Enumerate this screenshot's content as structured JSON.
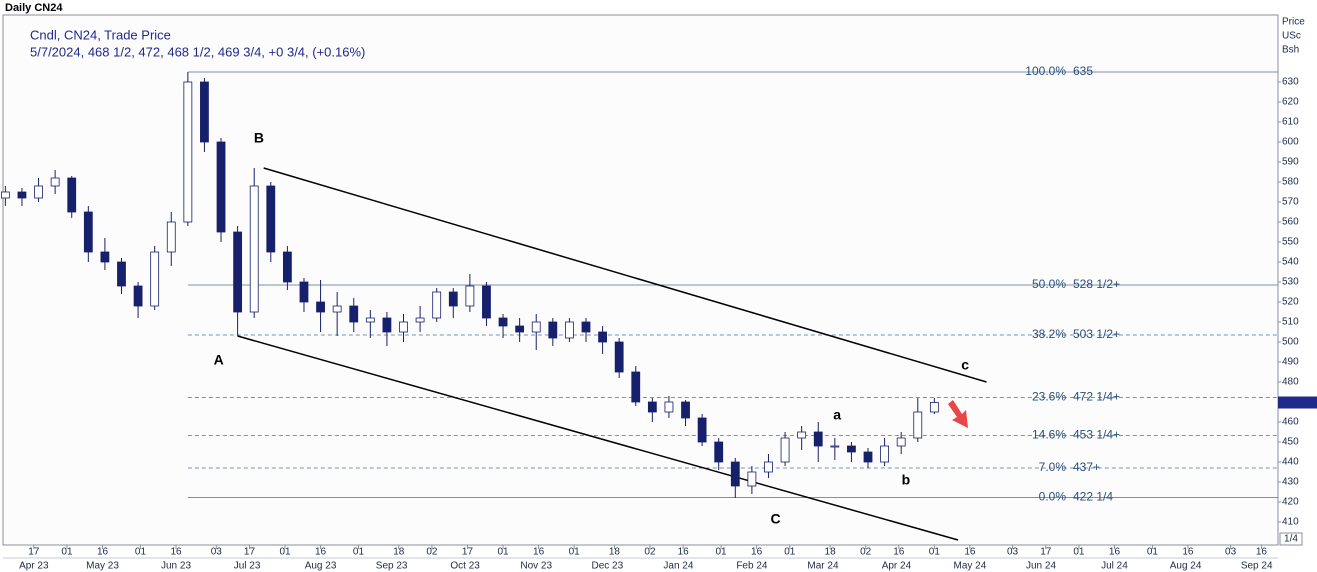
{
  "chart_data": {
    "type": "candlestick",
    "title": "Daily CN24",
    "legend_lines": [
      "Cndl, CN24, Trade Price",
      "5/7/2024, 468 1/2, 472, 468 1/2, 469 3/4, +0 3/4, (+0.16%)"
    ],
    "axis_units": [
      "Price",
      "USc",
      "Bsh"
    ],
    "corner_label": "1/4",
    "color": "#16206b",
    "x": [
      "2023-04-05",
      "2023-04-12",
      "2023-04-19",
      "2023-04-26",
      "2023-05-03",
      "2023-05-10",
      "2023-05-17",
      "2023-05-24",
      "2023-05-31",
      "2023-06-07",
      "2023-06-14",
      "2023-06-21",
      "2023-06-28",
      "2023-07-05",
      "2023-07-12",
      "2023-07-19",
      "2023-07-26",
      "2023-08-02",
      "2023-08-09",
      "2023-08-16",
      "2023-08-23",
      "2023-08-30",
      "2023-09-06",
      "2023-09-13",
      "2023-09-20",
      "2023-09-27",
      "2023-10-04",
      "2023-10-11",
      "2023-10-18",
      "2023-10-25",
      "2023-11-01",
      "2023-11-08",
      "2023-11-15",
      "2023-11-22",
      "2023-11-29",
      "2023-12-06",
      "2023-12-13",
      "2023-12-20",
      "2023-12-27",
      "2024-01-03",
      "2024-01-10",
      "2024-01-17",
      "2024-01-24",
      "2024-01-31",
      "2024-02-07",
      "2024-02-14",
      "2024-02-21",
      "2024-02-28",
      "2024-03-06",
      "2024-03-13",
      "2024-03-20",
      "2024-03-27",
      "2024-04-03",
      "2024-04-10",
      "2024-04-17",
      "2024-04-24",
      "2024-05-01"
    ],
    "open": [
      572,
      575,
      572,
      578,
      582,
      565,
      545,
      540,
      528,
      518,
      545,
      560,
      630,
      600,
      555,
      515,
      578,
      545,
      530,
      520,
      515,
      518,
      510,
      512,
      505,
      510,
      512,
      525,
      518,
      528,
      512,
      508,
      505,
      510,
      502,
      510,
      505,
      500,
      485,
      470,
      465,
      470,
      462,
      450,
      440,
      428,
      435,
      440,
      452,
      455,
      448,
      448,
      445,
      440,
      448,
      452,
      465
    ],
    "high": [
      578,
      577,
      582,
      586,
      583,
      568,
      552,
      542,
      530,
      548,
      565,
      635,
      632,
      602,
      558,
      587,
      580,
      548,
      532,
      531,
      525,
      522,
      516,
      515,
      514,
      518,
      527,
      527,
      534,
      530,
      514,
      512,
      514,
      512,
      512,
      512,
      508,
      502,
      488,
      472,
      473,
      471,
      464,
      452,
      442,
      438,
      444,
      455,
      458,
      460,
      452,
      450,
      447,
      452,
      455,
      472,
      472
    ],
    "low": [
      568,
      568,
      570,
      574,
      562,
      540,
      536,
      524,
      512,
      516,
      538,
      558,
      595,
      550,
      503,
      512,
      540,
      526,
      515,
      505,
      503,
      505,
      502,
      498,
      500,
      505,
      510,
      512,
      515,
      508,
      502,
      500,
      496,
      498,
      500,
      500,
      494,
      482,
      468,
      460,
      462,
      458,
      448,
      436,
      422,
      424,
      432,
      438,
      446,
      440,
      441,
      440,
      437,
      438,
      444,
      450,
      464
    ],
    "close": [
      575,
      572,
      578,
      582,
      565,
      545,
      540,
      528,
      518,
      545,
      560,
      630,
      600,
      555,
      515,
      578,
      545,
      530,
      520,
      515,
      518,
      510,
      512,
      505,
      510,
      512,
      525,
      518,
      528,
      512,
      508,
      505,
      510,
      502,
      510,
      505,
      500,
      485,
      470,
      465,
      470,
      462,
      450,
      440,
      428,
      435,
      440,
      452,
      455,
      448,
      448,
      445,
      440,
      448,
      452,
      465,
      469.75
    ],
    "xlim": [
      "2023-04-04",
      "2024-09-23"
    ],
    "xticks": [
      {
        "value": "2023-04-17",
        "label": "17"
      },
      {
        "value": "2023-05-01",
        "label": "01"
      },
      {
        "value": "2023-05-16",
        "label": "16"
      },
      {
        "value": "2023-06-01",
        "label": "01"
      },
      {
        "value": "2023-06-16",
        "label": "16"
      },
      {
        "value": "2023-07-03",
        "label": "03"
      },
      {
        "value": "2023-07-17",
        "label": "17"
      },
      {
        "value": "2023-08-01",
        "label": "01"
      },
      {
        "value": "2023-08-16",
        "label": "16"
      },
      {
        "value": "2023-09-01",
        "label": "01"
      },
      {
        "value": "2023-09-18",
        "label": "18"
      },
      {
        "value": "2023-10-02",
        "label": "02"
      },
      {
        "value": "2023-10-17",
        "label": "17"
      },
      {
        "value": "2023-11-01",
        "label": "01"
      },
      {
        "value": "2023-11-16",
        "label": "16"
      },
      {
        "value": "2023-12-01",
        "label": "01"
      },
      {
        "value": "2023-12-18",
        "label": "18"
      },
      {
        "value": "2024-01-02",
        "label": "02"
      },
      {
        "value": "2024-01-16",
        "label": "16"
      },
      {
        "value": "2024-02-01",
        "label": "01"
      },
      {
        "value": "2024-02-16",
        "label": "16"
      },
      {
        "value": "2024-03-01",
        "label": "01"
      },
      {
        "value": "2024-03-18",
        "label": "18"
      },
      {
        "value": "2024-04-02",
        "label": "02"
      },
      {
        "value": "2024-04-16",
        "label": "16"
      },
      {
        "value": "2024-05-01",
        "label": "01"
      },
      {
        "value": "2024-05-16",
        "label": "16"
      },
      {
        "value": "2024-06-03",
        "label": "03"
      },
      {
        "value": "2024-06-17",
        "label": "17"
      },
      {
        "value": "2024-07-01",
        "label": "01"
      },
      {
        "value": "2024-07-16",
        "label": "16"
      },
      {
        "value": "2024-08-01",
        "label": "01"
      },
      {
        "value": "2024-08-16",
        "label": "16"
      },
      {
        "value": "2024-09-03",
        "label": "03"
      },
      {
        "value": "2024-09-16",
        "label": "16"
      }
    ],
    "month_labels": [
      {
        "value": "2023-04-17",
        "label": "Apr 23"
      },
      {
        "value": "2023-05-16",
        "label": "May 23"
      },
      {
        "value": "2023-06-16",
        "label": "Jun 23"
      },
      {
        "value": "2023-07-16",
        "label": "Jul 23"
      },
      {
        "value": "2023-08-16",
        "label": "Aug 23"
      },
      {
        "value": "2023-09-15",
        "label": "Sep 23"
      },
      {
        "value": "2023-10-16",
        "label": "Oct 23"
      },
      {
        "value": "2023-11-15",
        "label": "Nov 23"
      },
      {
        "value": "2023-12-15",
        "label": "Dec 23"
      },
      {
        "value": "2024-01-14",
        "label": "Jan 24"
      },
      {
        "value": "2024-02-14",
        "label": "Feb 24"
      },
      {
        "value": "2024-03-15",
        "label": "Mar 24"
      },
      {
        "value": "2024-04-15",
        "label": "Apr 24"
      },
      {
        "value": "2024-05-16",
        "label": "May 24"
      },
      {
        "value": "2024-06-15",
        "label": "Jun 24"
      },
      {
        "value": "2024-07-16",
        "label": "Jul 24"
      },
      {
        "value": "2024-08-15",
        "label": "Aug 24"
      },
      {
        "value": "2024-09-14",
        "label": "Sep 24"
      }
    ],
    "ylim": [
      398.5,
      663.5
    ],
    "yticks": [
      410,
      420,
      430,
      440,
      450,
      460,
      470,
      480,
      490,
      500,
      510,
      520,
      530,
      540,
      550,
      560,
      570,
      580,
      590,
      600,
      610,
      620,
      630
    ],
    "fib_start": "2023-06-21",
    "fib_levels": [
      {
        "pct": "100.0%",
        "price": "635",
        "value": 635,
        "style": "solid"
      },
      {
        "pct": "50.0%",
        "price": "528 1/2+",
        "value": 528.5,
        "style": "solid"
      },
      {
        "pct": "38.2%",
        "price": "503 1/2+",
        "value": 503.5,
        "style": "dashed"
      },
      {
        "pct": "23.6%",
        "price": "472 1/4+",
        "value": 472.25,
        "style": "dashed"
      },
      {
        "pct": "14.6%",
        "price": "453 1/4+",
        "value": 453.25,
        "style": "dashed"
      },
      {
        "pct": "7.0%",
        "price": "437+",
        "value": 437,
        "style": "dashed"
      },
      {
        "pct": "0.0%",
        "price": "422 1/4",
        "value": 422.25,
        "style": "solid"
      }
    ],
    "trendlines": [
      {
        "x": [
          "2023-07-23",
          "2024-05-23"
        ],
        "values": [
          587,
          480
        ]
      },
      {
        "x": [
          "2023-07-12",
          "2024-05-11"
        ],
        "values": [
          503,
          401
        ]
      }
    ],
    "wave_labels": [
      {
        "text": "A",
        "x": "2023-07-04",
        "value": 490.5
      },
      {
        "text": "B",
        "x": "2023-07-21",
        "value": 601.5
      },
      {
        "text": "C",
        "x": "2024-02-24",
        "value": 411
      },
      {
        "text": "a",
        "x": "2024-03-21",
        "value": 463
      },
      {
        "text": "b",
        "x": "2024-04-19",
        "value": 430.5
      },
      {
        "text": "c",
        "x": "2024-05-14",
        "value": 488
      }
    ]
  }
}
